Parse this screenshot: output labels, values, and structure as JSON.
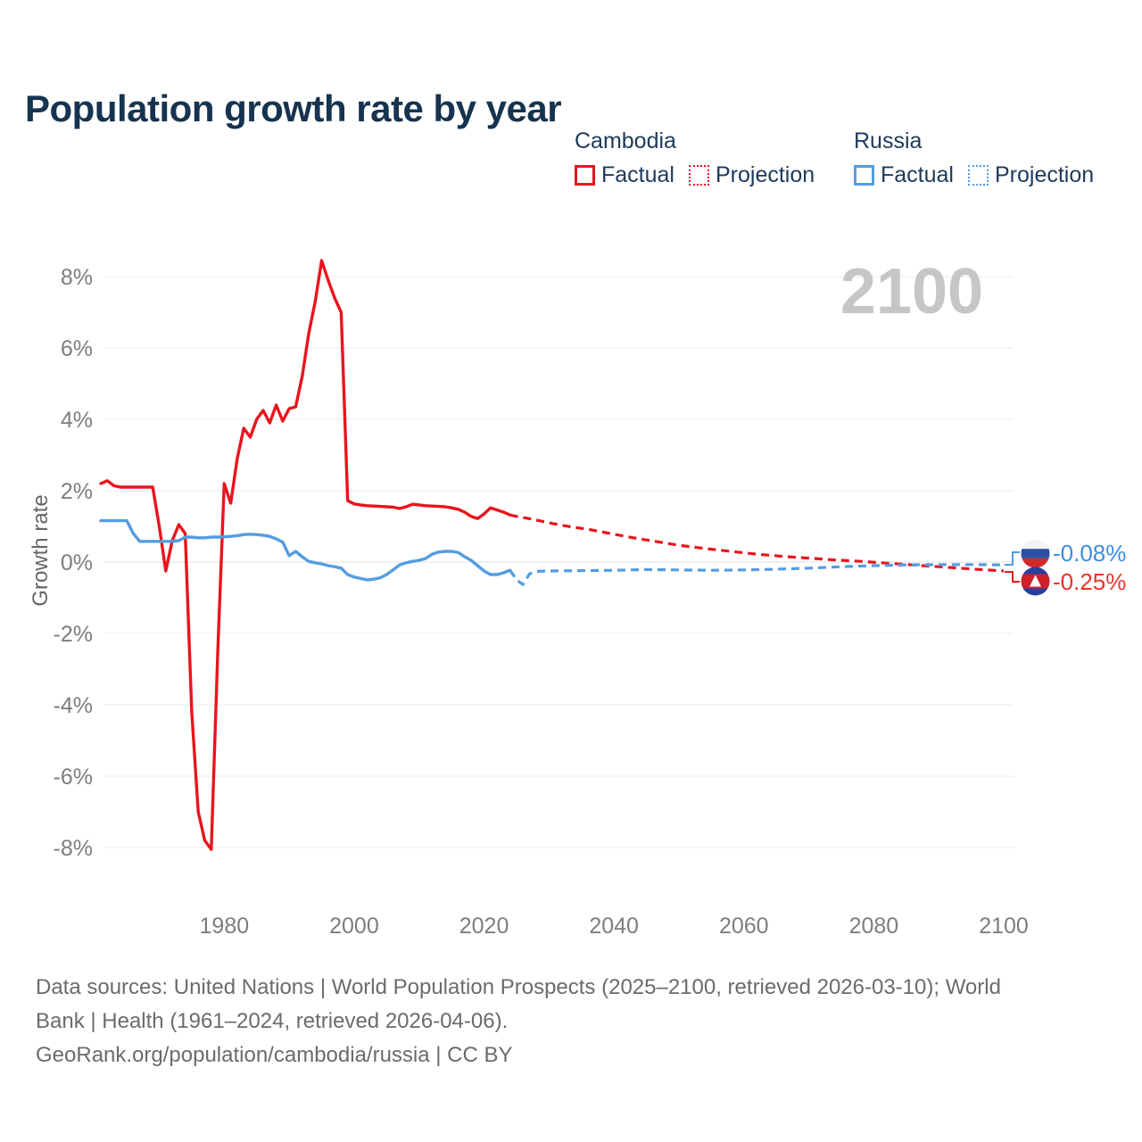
{
  "title": "Population growth rate by year",
  "watermark": "2100",
  "legend": {
    "groups": [
      {
        "name": "Cambodia",
        "color": "#e9141d",
        "items": [
          {
            "label": "Factual",
            "style": "solid"
          },
          {
            "label": "Projection",
            "style": "dotted"
          }
        ]
      },
      {
        "name": "Russia",
        "color": "#549ce2",
        "items": [
          {
            "label": "Factual",
            "style": "solid"
          },
          {
            "label": "Projection",
            "style": "dotted"
          }
        ]
      }
    ]
  },
  "end_labels": [
    {
      "series": "Russia",
      "label": "-0.08%",
      "color": "#3a8ee0"
    },
    {
      "series": "Cambodia",
      "label": "-0.25%",
      "color": "#e9342a"
    }
  ],
  "flags": {
    "russia": {
      "white": "#f4f4f4",
      "blue": "#2b4fa2",
      "red": "#d02b28"
    },
    "cambodia": {
      "blue": "#2b3d9e",
      "red": "#d02028",
      "temple": "#ffffff"
    }
  },
  "footer": {
    "line1": "Data sources: United Nations | World Population Prospects (2025–2100, retrieved 2026-03-10); World",
    "line2": "Bank | Health (1961–2024, retrieved 2026-04-06).",
    "line3": "GeoRank.org/population/cambodia/russia | CC BY"
  },
  "chart_data": {
    "type": "line",
    "title": "Population growth rate by year",
    "xlabel": "",
    "ylabel": "Growth rate",
    "xlim": [
      1961,
      2100
    ],
    "ylim": [
      -8,
      8
    ],
    "grid": true,
    "legend_position": "top-right",
    "yticks": [
      {
        "v": 8,
        "label": "8%"
      },
      {
        "v": 6,
        "label": "6%"
      },
      {
        "v": 4,
        "label": "4%"
      },
      {
        "v": 2,
        "label": "2%"
      },
      {
        "v": 0,
        "label": "0%"
      },
      {
        "v": -2,
        "label": "-2%"
      },
      {
        "v": -4,
        "label": "-4%"
      },
      {
        "v": -6,
        "label": "-6%"
      },
      {
        "v": -8,
        "label": "-8%"
      }
    ],
    "xticks": [
      {
        "v": 1980,
        "label": "1980"
      },
      {
        "v": 2000,
        "label": "2000"
      },
      {
        "v": 2020,
        "label": "2020"
      },
      {
        "v": 2040,
        "label": "2040"
      },
      {
        "v": 2060,
        "label": "2060"
      },
      {
        "v": 2080,
        "label": "2080"
      },
      {
        "v": 2100,
        "label": "2100"
      }
    ],
    "series": [
      {
        "id": "cambodia-factual",
        "name": "Cambodia Factual",
        "color": "#e9141d",
        "style": "solid",
        "points": [
          [
            1961,
            2.2
          ],
          [
            1962,
            2.28
          ],
          [
            1963,
            2.14
          ],
          [
            1964,
            2.1
          ],
          [
            1965,
            2.1
          ],
          [
            1966,
            2.1
          ],
          [
            1967,
            2.1
          ],
          [
            1968,
            2.1
          ],
          [
            1969,
            2.1
          ],
          [
            1970,
            1.0
          ],
          [
            1971,
            -0.25
          ],
          [
            1972,
            0.6
          ],
          [
            1973,
            1.05
          ],
          [
            1974,
            0.8
          ],
          [
            1975,
            -4.2
          ],
          [
            1976,
            -7.0
          ],
          [
            1977,
            -7.8
          ],
          [
            1978,
            -8.05
          ],
          [
            1979,
            -2.5
          ],
          [
            1980,
            2.2
          ],
          [
            1981,
            1.65
          ],
          [
            1982,
            2.9
          ],
          [
            1983,
            3.75
          ],
          [
            1984,
            3.5
          ],
          [
            1985,
            4.0
          ],
          [
            1986,
            4.25
          ],
          [
            1987,
            3.9
          ],
          [
            1988,
            4.4
          ],
          [
            1989,
            3.95
          ],
          [
            1990,
            4.3
          ],
          [
            1991,
            4.35
          ],
          [
            1992,
            5.2
          ],
          [
            1993,
            6.4
          ],
          [
            1994,
            7.3
          ],
          [
            1995,
            8.45
          ],
          [
            1996,
            7.9
          ],
          [
            1997,
            7.4
          ],
          [
            1998,
            7.0
          ],
          [
            1999,
            1.72
          ],
          [
            2000,
            1.63
          ],
          [
            2001,
            1.6
          ],
          [
            2002,
            1.58
          ],
          [
            2003,
            1.57
          ],
          [
            2004,
            1.56
          ],
          [
            2005,
            1.55
          ],
          [
            2006,
            1.54
          ],
          [
            2007,
            1.5
          ],
          [
            2008,
            1.55
          ],
          [
            2009,
            1.62
          ],
          [
            2010,
            1.6
          ],
          [
            2011,
            1.58
          ],
          [
            2012,
            1.57
          ],
          [
            2013,
            1.56
          ],
          [
            2014,
            1.55
          ],
          [
            2015,
            1.52
          ],
          [
            2016,
            1.48
          ],
          [
            2017,
            1.4
          ],
          [
            2018,
            1.28
          ],
          [
            2019,
            1.22
          ],
          [
            2020,
            1.35
          ],
          [
            2021,
            1.52
          ],
          [
            2022,
            1.46
          ],
          [
            2023,
            1.4
          ],
          [
            2024,
            1.32
          ]
        ]
      },
      {
        "id": "cambodia-projection",
        "name": "Cambodia Projection",
        "color": "#e9141d",
        "style": "dotted",
        "points": [
          [
            2024,
            1.32
          ],
          [
            2025,
            1.28
          ],
          [
            2026,
            1.25
          ],
          [
            2028,
            1.18
          ],
          [
            2030,
            1.1
          ],
          [
            2032,
            1.03
          ],
          [
            2034,
            0.97
          ],
          [
            2036,
            0.92
          ],
          [
            2038,
            0.85
          ],
          [
            2040,
            0.78
          ],
          [
            2043,
            0.68
          ],
          [
            2046,
            0.59
          ],
          [
            2050,
            0.47
          ],
          [
            2054,
            0.38
          ],
          [
            2058,
            0.3
          ],
          [
            2062,
            0.22
          ],
          [
            2066,
            0.16
          ],
          [
            2070,
            0.11
          ],
          [
            2074,
            0.06
          ],
          [
            2078,
            0.02
          ],
          [
            2082,
            -0.03
          ],
          [
            2086,
            -0.08
          ],
          [
            2090,
            -0.13
          ],
          [
            2094,
            -0.18
          ],
          [
            2100,
            -0.25
          ]
        ]
      },
      {
        "id": "russia-factual",
        "name": "Russia Factual",
        "color": "#549ce2",
        "style": "solid",
        "points": [
          [
            1961,
            1.16
          ],
          [
            1962,
            1.16
          ],
          [
            1963,
            1.16
          ],
          [
            1964,
            1.16
          ],
          [
            1965,
            1.16
          ],
          [
            1966,
            0.8
          ],
          [
            1967,
            0.58
          ],
          [
            1968,
            0.58
          ],
          [
            1969,
            0.58
          ],
          [
            1970,
            0.58
          ],
          [
            1971,
            0.58
          ],
          [
            1972,
            0.58
          ],
          [
            1973,
            0.6
          ],
          [
            1974,
            0.7
          ],
          [
            1975,
            0.7
          ],
          [
            1976,
            0.68
          ],
          [
            1977,
            0.68
          ],
          [
            1978,
            0.7
          ],
          [
            1979,
            0.7
          ],
          [
            1980,
            0.71
          ],
          [
            1981,
            0.72
          ],
          [
            1982,
            0.74
          ],
          [
            1983,
            0.77
          ],
          [
            1984,
            0.78
          ],
          [
            1985,
            0.77
          ],
          [
            1986,
            0.75
          ],
          [
            1987,
            0.72
          ],
          [
            1988,
            0.65
          ],
          [
            1989,
            0.56
          ],
          [
            1990,
            0.18
          ],
          [
            1991,
            0.3
          ],
          [
            1992,
            0.15
          ],
          [
            1993,
            0.02
          ],
          [
            1994,
            -0.02
          ],
          [
            1995,
            -0.05
          ],
          [
            1996,
            -0.1
          ],
          [
            1997,
            -0.13
          ],
          [
            1998,
            -0.17
          ],
          [
            1999,
            -0.35
          ],
          [
            2000,
            -0.42
          ],
          [
            2001,
            -0.46
          ],
          [
            2002,
            -0.5
          ],
          [
            2003,
            -0.48
          ],
          [
            2004,
            -0.44
          ],
          [
            2005,
            -0.35
          ],
          [
            2006,
            -0.22
          ],
          [
            2007,
            -0.08
          ],
          [
            2008,
            -0.02
          ],
          [
            2009,
            0.02
          ],
          [
            2010,
            0.05
          ],
          [
            2011,
            0.1
          ],
          [
            2012,
            0.22
          ],
          [
            2013,
            0.28
          ],
          [
            2014,
            0.3
          ],
          [
            2015,
            0.3
          ],
          [
            2016,
            0.27
          ],
          [
            2017,
            0.15
          ],
          [
            2018,
            0.05
          ],
          [
            2019,
            -0.1
          ],
          [
            2020,
            -0.25
          ],
          [
            2021,
            -0.35
          ],
          [
            2022,
            -0.35
          ],
          [
            2023,
            -0.3
          ],
          [
            2024,
            -0.23
          ]
        ]
      },
      {
        "id": "russia-projection",
        "name": "Russia Projection",
        "color": "#549ce2",
        "style": "dotted",
        "points": [
          [
            2024,
            -0.23
          ],
          [
            2025,
            -0.5
          ],
          [
            2026,
            -0.63
          ],
          [
            2027,
            -0.33
          ],
          [
            2028,
            -0.26
          ],
          [
            2030,
            -0.25
          ],
          [
            2035,
            -0.24
          ],
          [
            2040,
            -0.23
          ],
          [
            2045,
            -0.21
          ],
          [
            2050,
            -0.22
          ],
          [
            2055,
            -0.23
          ],
          [
            2060,
            -0.22
          ],
          [
            2065,
            -0.2
          ],
          [
            2070,
            -0.17
          ],
          [
            2075,
            -0.13
          ],
          [
            2080,
            -0.1
          ],
          [
            2085,
            -0.08
          ],
          [
            2090,
            -0.07
          ],
          [
            2095,
            -0.07
          ],
          [
            2100,
            -0.08
          ]
        ]
      }
    ]
  }
}
